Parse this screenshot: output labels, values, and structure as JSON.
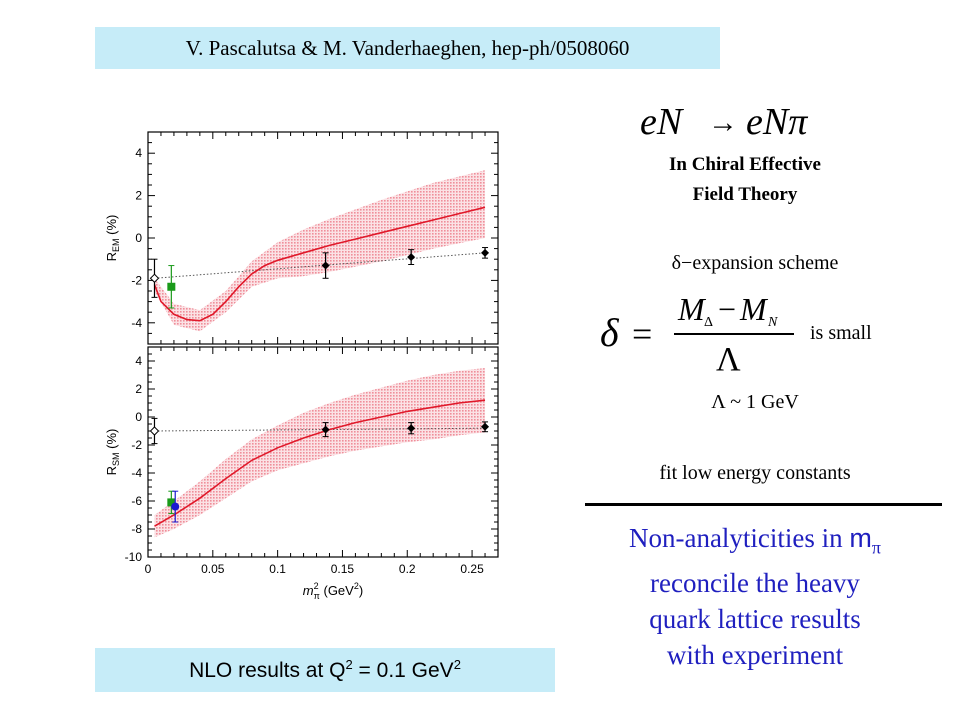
{
  "citation": "V. Pascalutsa & M. Vanderhaeghen, hep-ph/0508060",
  "process": {
    "lhs": "eN",
    "arrow": "→",
    "rhs": "eNπ"
  },
  "theory": {
    "line1": "In Chiral Effective",
    "line2": "Field Theory"
  },
  "expansion": "δ−expansion scheme",
  "formula": {
    "delta": "δ",
    "equals": "=",
    "numerator": "M",
    "sub1": "Δ",
    "minus": "−",
    "sub2": "N",
    "denominator": "Λ"
  },
  "is_small": "is small",
  "lambda_scale": "Λ ~ 1 GeV",
  "fit_text": "fit low energy constants",
  "conclusion": {
    "line1a": "Non-analyticities in ",
    "line1b": "m",
    "line1c": "π",
    "line2": "reconcile the heavy",
    "line3": "quark lattice results",
    "line4": "with experiment"
  },
  "nlo": {
    "text": "NLO results at Q",
    "sup1": "2",
    "mid": " = 0.1 GeV",
    "sup2": "2"
  },
  "colors": {
    "box_bg": "#c6ecf8",
    "curve": "#e0192a",
    "band": "#f4b3bb",
    "conclusion": "#1f1fbf",
    "green": "#1a9a1a",
    "blue": "#1a1ad0"
  },
  "chart_data": [
    {
      "type": "line",
      "panel": "top",
      "ylabel": "R_EM (%)",
      "ylabel_main": "R",
      "ylabel_sub": "EM",
      "ylabel_unit": " (%)",
      "xlim": [
        0,
        0.27
      ],
      "ylim": [
        -5,
        5
      ],
      "yticks": [
        -4,
        -2,
        0,
        2,
        4
      ],
      "yticklabels": [
        "-4",
        "-2",
        "0",
        "2",
        "4"
      ],
      "series": [
        {
          "role": "theory-curve",
          "x": [
            0.005,
            0.01,
            0.02,
            0.03,
            0.04,
            0.05,
            0.06,
            0.07,
            0.08,
            0.09,
            0.1,
            0.12,
            0.14,
            0.16,
            0.18,
            0.2,
            0.22,
            0.24,
            0.26
          ],
          "y": [
            -2.2,
            -3.0,
            -3.6,
            -3.85,
            -3.9,
            -3.6,
            -3.0,
            -2.3,
            -1.7,
            -1.3,
            -1.05,
            -0.7,
            -0.35,
            -0.05,
            0.25,
            0.55,
            0.85,
            1.15,
            1.45
          ]
        },
        {
          "role": "band-upper",
          "x": [
            0.005,
            0.02,
            0.04,
            0.06,
            0.08,
            0.1,
            0.12,
            0.14,
            0.16,
            0.18,
            0.2,
            0.22,
            0.24,
            0.26
          ],
          "y": [
            -1.9,
            -3.1,
            -3.4,
            -2.5,
            -1.1,
            -0.2,
            0.4,
            0.9,
            1.35,
            1.8,
            2.2,
            2.6,
            2.9,
            3.2
          ]
        },
        {
          "role": "band-lower",
          "x": [
            0.005,
            0.02,
            0.04,
            0.06,
            0.08,
            0.1,
            0.12,
            0.14,
            0.16,
            0.18,
            0.2,
            0.22,
            0.24,
            0.26
          ],
          "y": [
            -2.5,
            -4.1,
            -4.4,
            -3.5,
            -2.3,
            -1.9,
            -1.8,
            -1.6,
            -1.35,
            -1.1,
            -0.8,
            -0.5,
            -0.25,
            0.0
          ]
        },
        {
          "role": "dotted-fit",
          "x": [
            0.005,
            0.26
          ],
          "y": [
            -1.9,
            -0.7
          ]
        }
      ],
      "points": [
        {
          "x": 0.137,
          "y": -1.3,
          "err": 0.6,
          "marker": "diamond",
          "color": "#000000"
        },
        {
          "x": 0.203,
          "y": -0.9,
          "err": 0.35,
          "marker": "diamond",
          "color": "#000000"
        },
        {
          "x": 0.26,
          "y": -0.7,
          "err": 0.25,
          "marker": "diamond",
          "color": "#000000"
        },
        {
          "x": 0.005,
          "y": -1.9,
          "err": 0.9,
          "marker": "open-diamond",
          "color": "#000000"
        },
        {
          "x": 0.018,
          "y": -2.3,
          "err": 1.0,
          "marker": "square",
          "color": "#1a9a1a"
        }
      ]
    },
    {
      "type": "line",
      "panel": "bottom",
      "ylabel": "R_SM (%)",
      "ylabel_main": "R",
      "ylabel_sub": "SM",
      "ylabel_unit": " (%)",
      "xlabel": "m_π² (GeV²)",
      "xlabel_m": "m",
      "xlabel_pi": "π",
      "xlabel_sup": "2",
      "xlabel_unit": " (GeV",
      "xlabel_unit_sup": "2",
      "xlabel_close": ")",
      "xlim": [
        0,
        0.27
      ],
      "ylim": [
        -10,
        5
      ],
      "xticks": [
        0,
        0.05,
        0.1,
        0.15,
        0.2,
        0.25
      ],
      "xticklabels": [
        "0",
        "0.05",
        "0.1",
        "0.15",
        "0.2",
        "0.25"
      ],
      "yticks": [
        -10,
        -8,
        -6,
        -4,
        -2,
        0,
        2,
        4
      ],
      "yticklabels": [
        "-10",
        "-8",
        "-6",
        "-4",
        "-2",
        "0",
        "2",
        "4"
      ],
      "series": [
        {
          "role": "theory-curve",
          "x": [
            0.005,
            0.02,
            0.04,
            0.06,
            0.08,
            0.1,
            0.12,
            0.14,
            0.16,
            0.18,
            0.2,
            0.22,
            0.24,
            0.26
          ],
          "y": [
            -7.8,
            -7.0,
            -5.8,
            -4.4,
            -3.1,
            -2.2,
            -1.5,
            -0.9,
            -0.4,
            0.0,
            0.4,
            0.7,
            1.0,
            1.2
          ]
        },
        {
          "role": "band-upper",
          "x": [
            0.005,
            0.02,
            0.04,
            0.06,
            0.08,
            0.1,
            0.12,
            0.14,
            0.16,
            0.18,
            0.2,
            0.22,
            0.24,
            0.26
          ],
          "y": [
            -7.0,
            -6.0,
            -4.6,
            -3.0,
            -1.6,
            -0.6,
            0.3,
            1.0,
            1.6,
            2.1,
            2.6,
            3.0,
            3.3,
            3.5
          ]
        },
        {
          "role": "band-lower",
          "x": [
            0.005,
            0.02,
            0.04,
            0.06,
            0.08,
            0.1,
            0.12,
            0.14,
            0.16,
            0.18,
            0.2,
            0.22,
            0.24,
            0.26
          ],
          "y": [
            -8.6,
            -8.0,
            -7.0,
            -5.8,
            -4.6,
            -3.8,
            -3.3,
            -2.8,
            -2.4,
            -2.1,
            -1.8,
            -1.6,
            -1.3,
            -1.1
          ]
        },
        {
          "role": "dotted-fit",
          "x": [
            0.005,
            0.26
          ],
          "y": [
            -1.0,
            -0.8
          ]
        }
      ],
      "points": [
        {
          "x": 0.137,
          "y": -0.9,
          "err": 0.5,
          "marker": "diamond",
          "color": "#000000"
        },
        {
          "x": 0.203,
          "y": -0.8,
          "err": 0.4,
          "marker": "diamond",
          "color": "#000000"
        },
        {
          "x": 0.26,
          "y": -0.7,
          "err": 0.35,
          "marker": "diamond",
          "color": "#000000"
        },
        {
          "x": 0.005,
          "y": -1.0,
          "err": 0.9,
          "marker": "open-diamond",
          "color": "#000000"
        },
        {
          "x": 0.018,
          "y": -6.1,
          "err": 0.8,
          "marker": "square",
          "color": "#1a9a1a"
        },
        {
          "x": 0.021,
          "y": -6.4,
          "err": 1.1,
          "marker": "circle",
          "color": "#1a1ad0"
        }
      ]
    }
  ]
}
